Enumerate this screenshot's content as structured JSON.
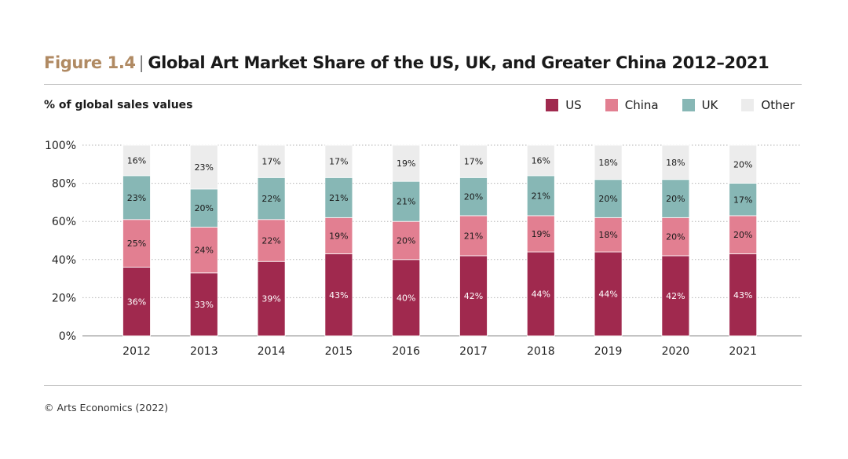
{
  "header": {
    "figure": "Figure 1.4",
    "separator": "|",
    "title": "Global Art Market Share of the US, UK, and Greater China 2012–2021",
    "subtitle": "% of global sales values"
  },
  "footer": {
    "source": "© Arts Economics (2022)"
  },
  "colors": {
    "US": "#a0294e",
    "China": "#e27f91",
    "UK": "#87b7b5",
    "Other": "#ececec",
    "label_dark": "#1a1a1a",
    "label_light": "#ffffff"
  },
  "chart_data": {
    "type": "bar",
    "stacked": true,
    "title": "Global Art Market Share of the US, UK, and Greater China 2012–2021",
    "ylabel": "% of global sales values",
    "xlabel": "",
    "ylim": [
      0,
      100
    ],
    "yticks": [
      0,
      20,
      40,
      60,
      80,
      100
    ],
    "ytick_labels": [
      "0%",
      "20%",
      "40%",
      "60%",
      "80%",
      "100%"
    ],
    "grid": "horizontal dotted",
    "legend_position": "top-right",
    "categories": [
      "2012",
      "2013",
      "2014",
      "2015",
      "2016",
      "2017",
      "2018",
      "2019",
      "2020",
      "2021"
    ],
    "series": [
      {
        "name": "US",
        "values": [
          36,
          33,
          39,
          43,
          40,
          42,
          44,
          44,
          42,
          43
        ],
        "labels": [
          "36%",
          "33%",
          "39%",
          "43%",
          "40%",
          "42%",
          "44%",
          "44%",
          "42%",
          "43%"
        ]
      },
      {
        "name": "China",
        "values": [
          25,
          24,
          22,
          19,
          20,
          21,
          19,
          18,
          20,
          20
        ],
        "labels": [
          "25%",
          "24%",
          "22%",
          "19%",
          "20%",
          "21%",
          "19%",
          "18%",
          "20%",
          "20%"
        ]
      },
      {
        "name": "UK",
        "values": [
          23,
          20,
          22,
          21,
          21,
          20,
          21,
          20,
          20,
          17
        ],
        "labels": [
          "23%",
          "20%",
          "22%",
          "21%",
          "21%",
          "20%",
          "21%",
          "20%",
          "20%",
          "17%"
        ]
      },
      {
        "name": "Other",
        "values": [
          16,
          23,
          17,
          17,
          19,
          17,
          16,
          18,
          18,
          20
        ],
        "labels": [
          "16%",
          "23%",
          "17%",
          "17%",
          "19%",
          "17%",
          "16%",
          "18%",
          "18%",
          "20%"
        ]
      }
    ]
  }
}
